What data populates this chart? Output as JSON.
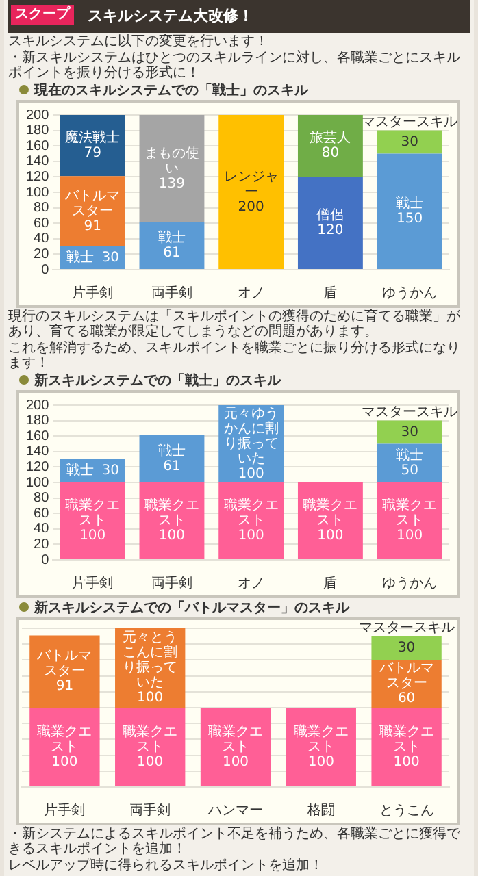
{
  "chart_data": [
    {
      "type": "other",
      "title": "スキルシステム大改修！",
      "subtitle": "スクープ",
      "annotations": [
        "スキルシステムに以下の変更を行います！",
        "・新スキルシステムはひとつのスキルラインに対し、各職業ごとにスキルポイントを振り分ける形式に！"
      ]
    },
    {
      "type": "bar",
      "stacked": true,
      "title": "現在のスキルシステムでの「戦士」のスキル",
      "categories": [
        "片手剣",
        "両手剣",
        "オノ",
        "盾",
        "ゆうかん"
      ],
      "series": [
        {
          "name": "戦士",
          "color": "#5b9bd5",
          "values": [
            30,
            61,
            null,
            null,
            150
          ]
        },
        {
          "name": "バトルマスター",
          "color": "#ed7d31",
          "values": [
            91,
            null,
            null,
            null,
            null
          ]
        },
        {
          "name": "魔法戦士",
          "color": "#255e91",
          "values": [
            79,
            null,
            null,
            null,
            null
          ]
        },
        {
          "name": "まもの使い",
          "color": "#a5a5a5",
          "values": [
            null,
            139,
            null,
            null,
            null
          ]
        },
        {
          "name": "レンジャー",
          "color": "#ffc000",
          "values": [
            null,
            null,
            200,
            null,
            null
          ]
        },
        {
          "name": "僧侶",
          "color": "#4472c4",
          "values": [
            null,
            null,
            null,
            120,
            null
          ]
        },
        {
          "name": "旅芸人",
          "color": "#70ad47",
          "values": [
            null,
            null,
            null,
            80,
            null
          ]
        },
        {
          "name": "マスタースキル",
          "color": "#92d050",
          "values": [
            null,
            null,
            null,
            null,
            30
          ]
        }
      ],
      "ylim": [
        0,
        200
      ],
      "yticks": [
        0,
        20,
        40,
        60,
        80,
        100,
        120,
        140,
        160,
        180,
        200
      ],
      "grid": "y",
      "data_labels": true,
      "annotations": [
        "現行のスキルシステムは「スキルポイントの獲得のために育てる職業」があり、育てる職業が限定してしまうなどの問題があります。",
        "これを解消するため、スキルポイントを職業ごとに振り分ける形式になります！"
      ]
    },
    {
      "type": "bar",
      "stacked": true,
      "title": "新スキルシステムでの「戦士」のスキル",
      "categories": [
        "片手剣",
        "両手剣",
        "オノ",
        "盾",
        "ゆうかん"
      ],
      "series": [
        {
          "name": "職業クエスト",
          "color": "#ff5f96",
          "values": [
            100,
            100,
            100,
            100,
            100
          ]
        },
        {
          "name": "戦士",
          "color": "#5b9bd5",
          "values": [
            30,
            61,
            null,
            null,
            50
          ]
        },
        {
          "name": "元々ゆうかんに割り振っていた",
          "color": "#5b9bd5",
          "values": [
            null,
            null,
            100,
            null,
            null
          ]
        },
        {
          "name": "マスタースキル",
          "color": "#92d050",
          "values": [
            null,
            null,
            null,
            null,
            30
          ]
        }
      ],
      "ylim": [
        0,
        200
      ],
      "yticks": [
        0,
        20,
        40,
        60,
        80,
        100,
        120,
        140,
        160,
        180,
        200
      ],
      "grid": "y",
      "data_labels": true
    },
    {
      "type": "bar",
      "stacked": true,
      "title": "新スキルシステムでの「バトルマスター」のスキル",
      "categories": [
        "片手剣",
        "両手剣",
        "ハンマー",
        "格闘",
        "とうこん"
      ],
      "series": [
        {
          "name": "職業クエスト",
          "color": "#ff5f96",
          "values": [
            100,
            100,
            100,
            100,
            100
          ]
        },
        {
          "name": "バトルマスター",
          "color": "#ed7d31",
          "values": [
            91,
            null,
            null,
            null,
            60
          ]
        },
        {
          "name": "元々とうこんに割り振っていた",
          "color": "#ed7d31",
          "values": [
            null,
            100,
            null,
            null,
            null
          ]
        },
        {
          "name": "マスタースキル",
          "color": "#92d050",
          "values": [
            null,
            null,
            null,
            null,
            30
          ]
        }
      ],
      "ylim": [
        0,
        200
      ],
      "yticks": [
        {
          "value": 0,
          "label": null
        },
        {
          "value": 20,
          "label": null
        },
        {
          "value": 40,
          "label": null
        },
        {
          "value": 60,
          "label": null
        },
        {
          "value": 80,
          "label": null
        },
        {
          "value": 100,
          "label": null
        },
        {
          "value": 120,
          "label": null
        },
        {
          "value": 140,
          "label": null
        },
        {
          "value": 160,
          "label": null
        },
        {
          "value": 180,
          "label": null
        },
        {
          "value": 200,
          "label": null
        }
      ],
      "grid": "y",
      "tick_labels": "x",
      "data_labels": true,
      "annotations": [
        "・新システムによるスキルポイント不足を補うため、各職業ごとに獲得できるスキルポイントを追加！",
        "レベルアップ時に得られるスキルポイントを追加！"
      ]
    }
  ]
}
